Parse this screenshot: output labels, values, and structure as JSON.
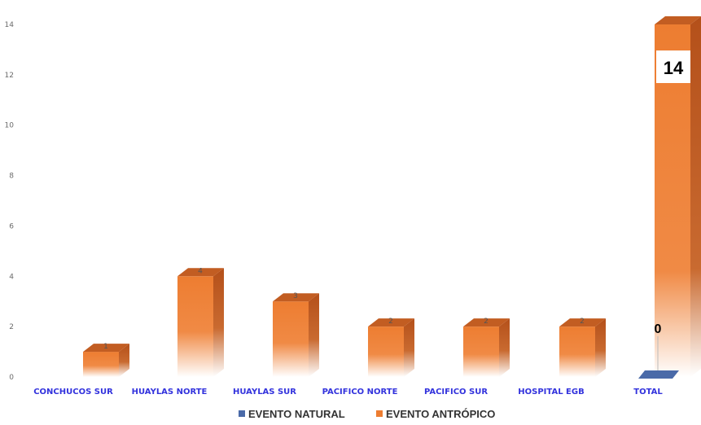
{
  "chart_data": {
    "type": "bar",
    "categories": [
      "CONCHUCOS SUR",
      "HUAYLAS NORTE",
      "HUAYLAS SUR",
      "PACIFICO NORTE",
      "PACIFICO SUR",
      "HOSPITAL EGB",
      "TOTAL"
    ],
    "series": [
      {
        "name": "EVENTO NATURAL",
        "values": [
          0,
          0,
          0,
          0,
          0,
          0,
          0
        ],
        "color": "#4a6aa8"
      },
      {
        "name": "EVENTO ANTRÓPICO",
        "values": [
          1,
          4,
          3,
          2,
          2,
          2,
          14
        ],
        "color": "#ed7d31"
      }
    ],
    "data_labels": {
      "EVENTO ANTRÓPICO": [
        "1",
        "4",
        "3",
        "2",
        "2",
        "2",
        "14"
      ],
      "EVENTO NATURAL_TOTAL": "0"
    },
    "y_ticks": [
      "0",
      "2",
      "4",
      "6",
      "8",
      "10",
      "12",
      "14"
    ],
    "ylim": [
      0,
      14
    ],
    "title": "",
    "xlabel": "",
    "ylabel": "",
    "grid": false,
    "legend_placement": "bottom",
    "style": "3d-column"
  }
}
